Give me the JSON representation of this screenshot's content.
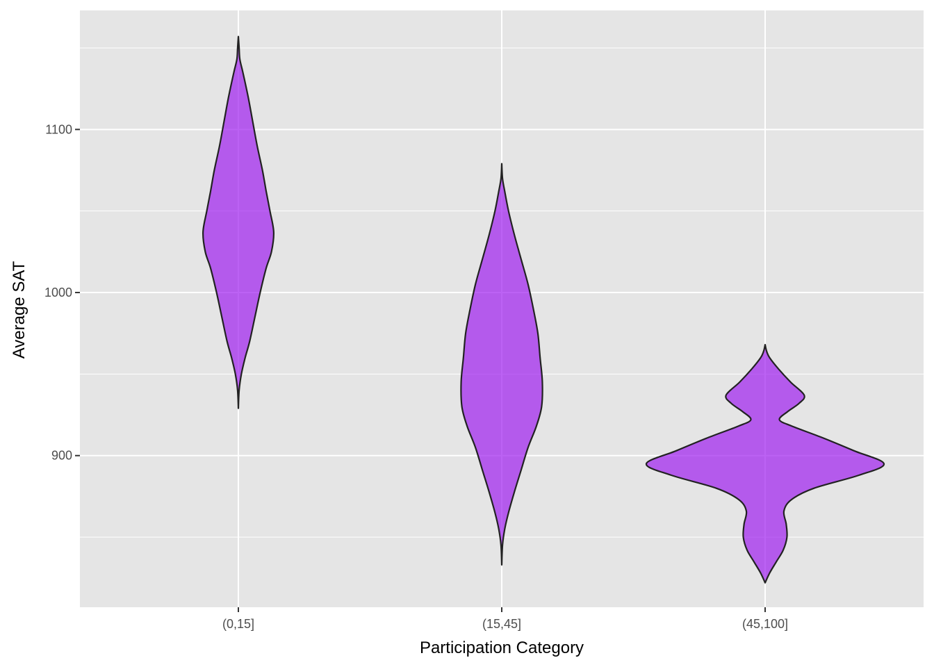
{
  "chart_data": {
    "type": "violin",
    "xlabel": "Participation Category",
    "ylabel": "Average SAT",
    "categories": [
      "(0,15]",
      "(15,45]",
      "(45,100]"
    ],
    "ylim": [
      807,
      1173
    ],
    "yticks": [
      900,
      1000,
      1100
    ],
    "ytick_labels": [
      "900",
      "1000",
      "1100"
    ],
    "grid": true,
    "legend": "none",
    "colors": {
      "panel": "#e5e5e5",
      "grid": "#ffffff",
      "fill": "#a020f0",
      "fill_opacity": 0.7,
      "outline": "#222222",
      "tick_text": "#4d4d4d",
      "title_text": "#000000"
    },
    "series": [
      {
        "category": "(0,15]",
        "min": 929,
        "max": 1157,
        "density": [
          [
            929,
            0.0
          ],
          [
            940,
            0.01
          ],
          [
            950,
            0.04
          ],
          [
            960,
            0.09
          ],
          [
            970,
            0.15
          ],
          [
            985,
            0.22
          ],
          [
            1000,
            0.29
          ],
          [
            1015,
            0.37
          ],
          [
            1025,
            0.44
          ],
          [
            1037,
            0.47
          ],
          [
            1050,
            0.42
          ],
          [
            1062,
            0.37
          ],
          [
            1075,
            0.32
          ],
          [
            1090,
            0.25
          ],
          [
            1105,
            0.19
          ],
          [
            1120,
            0.13
          ],
          [
            1135,
            0.06
          ],
          [
            1143,
            0.02
          ],
          [
            1150,
            0.01
          ],
          [
            1157,
            0.0
          ]
        ]
      },
      {
        "category": "(15,45]",
        "min": 833,
        "max": 1079,
        "density": [
          [
            833,
            0.0
          ],
          [
            845,
            0.01
          ],
          [
            855,
            0.04
          ],
          [
            865,
            0.09
          ],
          [
            878,
            0.17
          ],
          [
            890,
            0.25
          ],
          [
            905,
            0.35
          ],
          [
            918,
            0.46
          ],
          [
            930,
            0.53
          ],
          [
            945,
            0.54
          ],
          [
            960,
            0.51
          ],
          [
            975,
            0.48
          ],
          [
            990,
            0.42
          ],
          [
            1005,
            0.35
          ],
          [
            1020,
            0.26
          ],
          [
            1035,
            0.17
          ],
          [
            1050,
            0.09
          ],
          [
            1062,
            0.04
          ],
          [
            1070,
            0.01
          ],
          [
            1079,
            0.0
          ]
        ]
      },
      {
        "category": "(45,100]",
        "min": 822,
        "max": 968,
        "density": [
          [
            822,
            0.0
          ],
          [
            828,
            0.06
          ],
          [
            835,
            0.15
          ],
          [
            842,
            0.24
          ],
          [
            850,
            0.29
          ],
          [
            858,
            0.28
          ],
          [
            866,
            0.25
          ],
          [
            873,
            0.35
          ],
          [
            880,
            0.65
          ],
          [
            888,
            1.25
          ],
          [
            895,
            1.58
          ],
          [
            903,
            1.18
          ],
          [
            911,
            0.76
          ],
          [
            918,
            0.36
          ],
          [
            922,
            0.19
          ],
          [
            927,
            0.3
          ],
          [
            932,
            0.45
          ],
          [
            937,
            0.52
          ],
          [
            945,
            0.34
          ],
          [
            953,
            0.18
          ],
          [
            960,
            0.06
          ],
          [
            964,
            0.02
          ],
          [
            968,
            0.0
          ]
        ]
      }
    ]
  }
}
